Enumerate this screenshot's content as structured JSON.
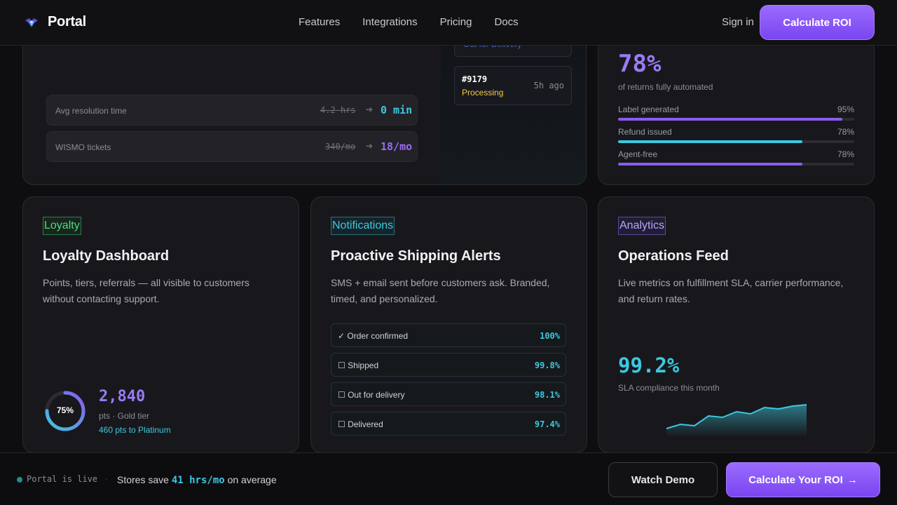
{
  "nav": {
    "brand": "Portal",
    "links": [
      "Features",
      "Integrations",
      "Pricing",
      "Docs"
    ],
    "signin": "Sign in",
    "cta": "Calculate ROI"
  },
  "resolution_card": {
    "stats": [
      {
        "label": "Avg resolution time",
        "old": "4.2 hrs",
        "new": "0 min",
        "color": "#3cc8e0"
      },
      {
        "label": "WISMO tickets",
        "old": "340/mo",
        "new": "18/mo",
        "color": "#9a6cf5"
      }
    ],
    "ticket_partial": "Out for Delivery",
    "ticket": {
      "id": "#9179",
      "status": "Processing",
      "ago": "5h ago"
    }
  },
  "returns_card": {
    "big_value": "78%",
    "caption": "of returns fully automated",
    "bars": [
      {
        "label": "Label generated",
        "value": "95%",
        "fraction": 0.95,
        "color": "#8a5cf0"
      },
      {
        "label": "Refund issued",
        "value": "78%",
        "fraction": 0.78,
        "color": "#3cc8e0"
      },
      {
        "label": "Agent-free",
        "value": "78%",
        "fraction": 0.78,
        "color": "#8a5cf0"
      }
    ]
  },
  "loyalty_card": {
    "tag": "Loyalty",
    "title": "Loyalty Dashboard",
    "desc": "Points, tiers, referrals — all visible to customers without contacting support.",
    "progress_label": "75%",
    "progress": 0.75,
    "points": "2,840",
    "tier": "pts · Gold tier",
    "next": "460 pts to Platinum"
  },
  "notifications_card": {
    "tag": "Notifications",
    "title": "Proactive Shipping Alerts",
    "desc": "SMS + email sent before customers ask. Branded, timed, and personalized.",
    "rows": [
      {
        "label": "✓ Order confirmed",
        "pct": "100%"
      },
      {
        "label": "☐ Shipped",
        "pct": "99.8%"
      },
      {
        "label": "☐ Out for delivery",
        "pct": "98.1%"
      },
      {
        "label": "☐ Delivered",
        "pct": "97.4%"
      }
    ]
  },
  "analytics_card": {
    "tag": "Analytics",
    "title": "Operations Feed",
    "desc": "Live metrics on fulfillment SLA, carrier performance, and return rates.",
    "big_value": "99.2%",
    "caption": "SLA compliance this month",
    "sparkline": [
      20,
      26,
      24,
      38,
      36,
      44,
      41,
      50,
      48,
      52,
      54
    ]
  },
  "bottom_bar": {
    "live": "Portal is live",
    "separator": "·",
    "save_prefix": "Stores save",
    "save_value": "41 hrs/mo",
    "save_suffix": "on average",
    "demo": "Watch Demo",
    "calc": "Calculate Your ROI",
    "calc_arrow": "→"
  }
}
